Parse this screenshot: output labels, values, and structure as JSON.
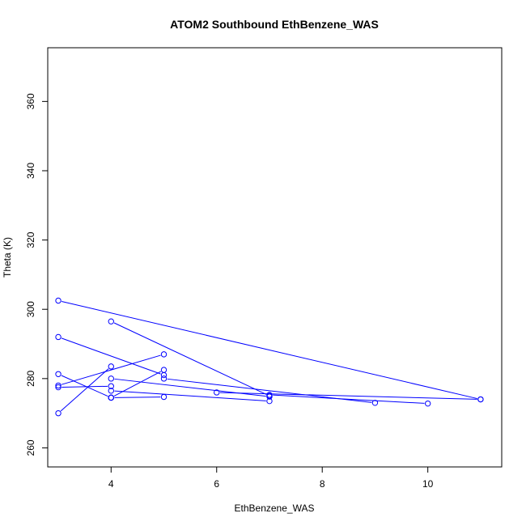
{
  "chart_data": {
    "type": "line",
    "title": "ATOM2 Southbound EthBenzene_WAS",
    "xlabel": "EthBenzene_WAS",
    "ylabel": "Theta (K)",
    "xlim": [
      2.8,
      11.4
    ],
    "ylim": [
      254.5,
      375.5
    ],
    "x_ticks": [
      4,
      6,
      8,
      10
    ],
    "y_ticks": [
      260,
      280,
      300,
      320,
      340,
      360
    ],
    "grid": false,
    "series_color": "#0000ff",
    "marker": "open-circle",
    "series": [
      {
        "x": [
          3,
          11
        ],
        "y": [
          302.5,
          274
        ]
      },
      {
        "x": [
          3,
          5
        ],
        "y": [
          292,
          281
        ]
      },
      {
        "x": [
          3,
          5
        ],
        "y": [
          278,
          287
        ]
      },
      {
        "x": [
          3,
          4
        ],
        "y": [
          281.3,
          274.5
        ]
      },
      {
        "x": [
          3,
          4
        ],
        "y": [
          277.5,
          277.8
        ]
      },
      {
        "x": [
          3,
          4
        ],
        "y": [
          270,
          283.5
        ]
      },
      {
        "x": [
          4,
          7
        ],
        "y": [
          296.5,
          275
        ]
      },
      {
        "x": [
          4,
          5
        ],
        "y": [
          274.5,
          282.5
        ]
      },
      {
        "x": [
          4,
          7
        ],
        "y": [
          280,
          274.8
        ]
      },
      {
        "x": [
          4,
          7
        ],
        "y": [
          276.5,
          273.5
        ]
      },
      {
        "x": [
          4,
          5
        ],
        "y": [
          274.5,
          274.7
        ]
      },
      {
        "x": [
          5,
          9
        ],
        "y": [
          280,
          273
        ]
      },
      {
        "x": [
          6,
          11
        ],
        "y": [
          276,
          274
        ]
      },
      {
        "x": [
          7,
          10
        ],
        "y": [
          275.3,
          272.8
        ]
      }
    ]
  }
}
